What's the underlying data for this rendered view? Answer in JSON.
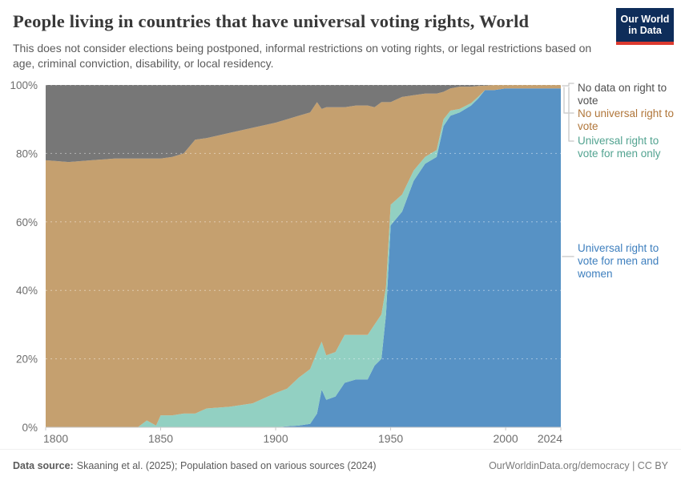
{
  "header": {
    "title": "People living in countries that have universal voting rights, World",
    "subtitle": "This does not consider elections being postponed, informal restrictions on voting rights, or legal restrictions based on age, criminal conviction, disability, or local residency.",
    "logo": {
      "line1": "Our World",
      "line2": "in Data"
    }
  },
  "legend": {
    "items": [
      {
        "label": "No data on right to vote",
        "series_id": "no_data",
        "text_color": "#4f4f4f"
      },
      {
        "label": "No universal right to vote",
        "series_id": "no_universal",
        "text_color": "#B0763A"
      },
      {
        "label": "Universal right to vote for men only",
        "series_id": "men_only",
        "text_color": "#52A390"
      },
      {
        "label": "Universal right to vote for men and women",
        "series_id": "men_and_women",
        "text_color": "#3E7FBE"
      }
    ]
  },
  "chart_data": {
    "type": "area",
    "stacked": true,
    "unit": "%",
    "title": "People living in countries that have universal voting rights, World",
    "xlim": [
      1800,
      2024
    ],
    "ylim": [
      0,
      100
    ],
    "grid": "horizontal-dashed",
    "legend_position": "right",
    "x_ticks": [
      "1800",
      "1850",
      "1900",
      "1950",
      "2000",
      "2024"
    ],
    "x_tick_values": [
      1800,
      1850,
      1900,
      1950,
      2000,
      2024
    ],
    "y_ticks": [
      "0%",
      "20%",
      "40%",
      "60%",
      "80%",
      "100%"
    ],
    "y_tick_values": [
      0,
      20,
      40,
      60,
      80,
      100
    ],
    "x": [
      1800,
      1810,
      1820,
      1830,
      1840,
      1844,
      1848,
      1850,
      1855,
      1860,
      1865,
      1870,
      1880,
      1890,
      1900,
      1905,
      1910,
      1915,
      1918,
      1920,
      1922,
      1926,
      1930,
      1935,
      1940,
      1943,
      1946,
      1948,
      1950,
      1955,
      1960,
      1965,
      1970,
      1973,
      1976,
      1980,
      1985,
      1988,
      1991,
      1995,
      2000,
      2010,
      2024
    ],
    "series": [
      {
        "id": "men_and_women",
        "name": "Universal right to vote for men and women",
        "color": "#5792C5",
        "values": [
          0,
          0,
          0,
          0,
          0,
          0,
          0,
          0,
          0,
          0,
          0,
          0,
          0,
          0,
          0,
          0.3,
          0.5,
          1,
          4,
          11,
          8,
          9,
          13,
          14,
          14,
          18,
          20,
          33,
          59,
          63,
          72,
          77,
          79,
          88,
          91,
          92,
          94,
          96,
          98.5,
          98.5,
          99,
          99,
          99
        ]
      },
      {
        "id": "men_only",
        "name": "Universal right to vote for men only",
        "color": "#92D0C2",
        "values": [
          0,
          0,
          0,
          0,
          0,
          2,
          0.5,
          3.5,
          3.5,
          4,
          4,
          5.5,
          6,
          7,
          10,
          11,
          14,
          16,
          18,
          14,
          13,
          13,
          14,
          13,
          13,
          12,
          13,
          8,
          6,
          5,
          3,
          2,
          2,
          2,
          1.5,
          1,
          0.7,
          0.5,
          0,
          0,
          0,
          0,
          0
        ]
      },
      {
        "id": "no_universal",
        "name": "No universal right to vote",
        "color": "#C5A06F",
        "values": [
          78,
          77.5,
          78,
          78.5,
          78.5,
          76.5,
          78,
          75,
          75.5,
          76,
          80,
          79,
          80,
          80.5,
          79,
          78.7,
          76.5,
          75,
          73,
          68,
          72.5,
          71.5,
          66.5,
          67,
          67,
          63.5,
          62,
          54,
          30,
          28.5,
          22,
          18.5,
          16.5,
          8,
          6.5,
          6.5,
          4.8,
          3.2,
          1.3,
          1.5,
          1,
          1,
          1
        ]
      },
      {
        "id": "no_data",
        "name": "No data on right to vote",
        "color": "#777777",
        "values": [
          22,
          22.5,
          22,
          21.5,
          21.5,
          21.5,
          21.5,
          21.5,
          21,
          20,
          16,
          15.5,
          14,
          12.5,
          11,
          10,
          9,
          8,
          5,
          7,
          6.5,
          6.5,
          6.5,
          6,
          6,
          6.5,
          5,
          5,
          5,
          3.5,
          3,
          2.5,
          2.5,
          2,
          1,
          0.5,
          0.5,
          0.3,
          0.2,
          0,
          0,
          0,
          0
        ]
      }
    ]
  },
  "footer": {
    "source_label": "Data source:",
    "source_text": "Skaaning et al. (2025); Population based on various sources (2024)",
    "right_text": "OurWorldinData.org/democracy | CC BY"
  }
}
